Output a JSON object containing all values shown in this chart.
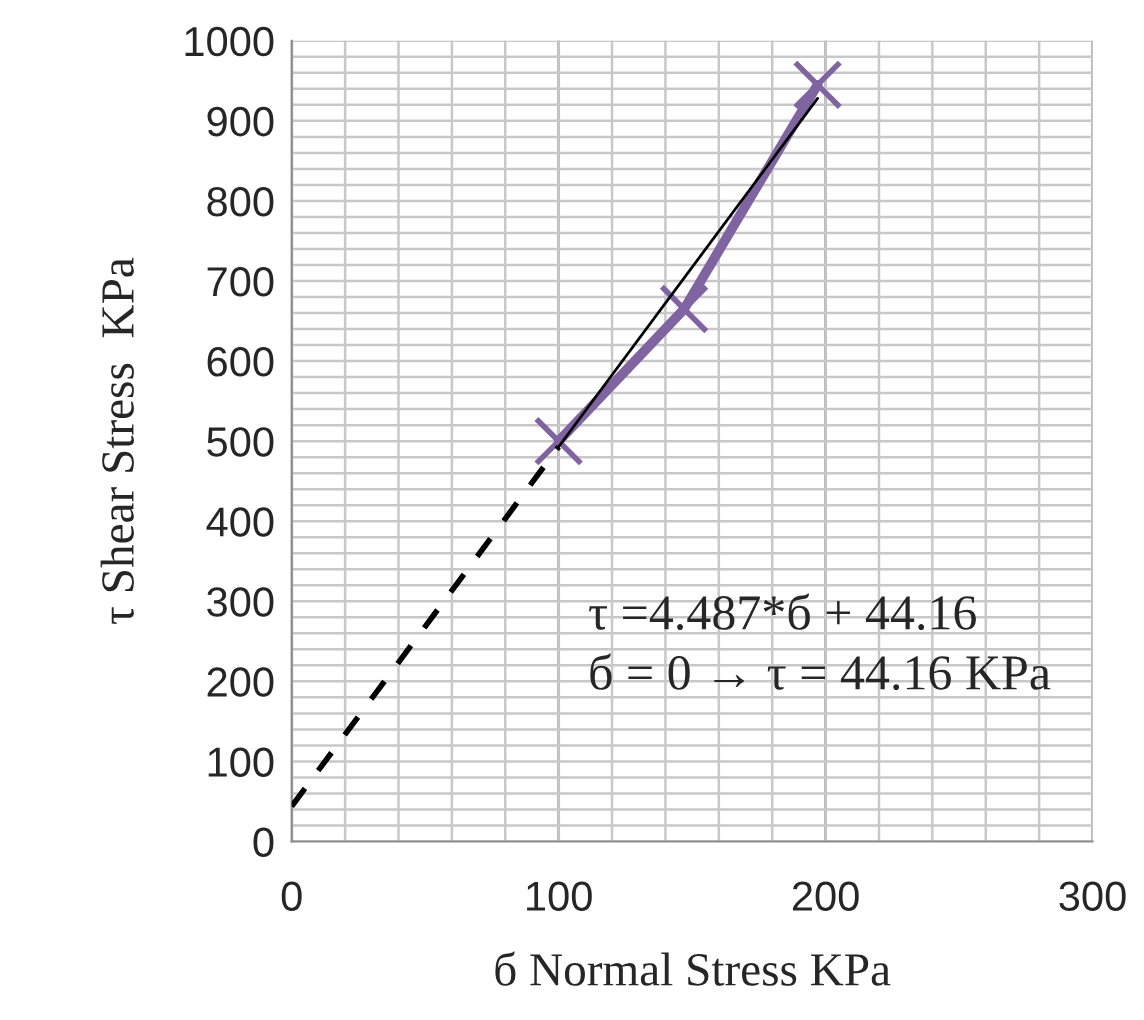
{
  "chart_data": {
    "type": "line",
    "xlabel": "б Normal Stress KPa",
    "ylabel": "τ Shear Stress  KPa",
    "annotations": [
      "τ =4.487*б + 44.16",
      "б = 0 → τ = 44.16 KPa"
    ],
    "series": [
      {
        "color": "#8064a2",
        "marker": "cross",
        "line_style": "solid",
        "x": [
          100,
          147,
          197
        ],
        "values": [
          500,
          665,
          945
        ]
      },
      {
        "color": "#000000",
        "marker": "none",
        "line_style": "solid",
        "x": [
          100,
          197
        ],
        "values": [
          493,
          928
        ]
      },
      {
        "color": "#000000",
        "marker": "none",
        "line_style": "dashed",
        "x": [
          0,
          100
        ],
        "values": [
          44,
          493
        ]
      }
    ],
    "xlim": [
      0,
      300
    ],
    "ylim": [
      0,
      1000
    ],
    "xticks": [
      0,
      {
        "value": 20,
        "label": null
      },
      {
        "value": 40,
        "label": null
      },
      {
        "value": 60,
        "label": null
      },
      {
        "value": 80,
        "label": null
      },
      100,
      {
        "value": 120,
        "label": null
      },
      {
        "value": 140,
        "label": null
      },
      {
        "value": 160,
        "label": null
      },
      {
        "value": 180,
        "label": null
      },
      200,
      {
        "value": 220,
        "label": null
      },
      {
        "value": 240,
        "label": null
      },
      {
        "value": 260,
        "label": null
      },
      {
        "value": 280,
        "label": null
      },
      300
    ],
    "yticks": [
      0,
      {
        "value": 20,
        "label": null
      },
      {
        "value": 40,
        "label": null
      },
      {
        "value": 60,
        "label": null
      },
      {
        "value": 80,
        "label": null
      },
      100,
      {
        "value": 120,
        "label": null
      },
      {
        "value": 140,
        "label": null
      },
      {
        "value": 160,
        "label": null
      },
      {
        "value": 180,
        "label": null
      },
      200,
      {
        "value": 220,
        "label": null
      },
      {
        "value": 240,
        "label": null
      },
      {
        "value": 260,
        "label": null
      },
      {
        "value": 280,
        "label": null
      },
      300,
      {
        "value": 320,
        "label": null
      },
      {
        "value": 340,
        "label": null
      },
      {
        "value": 360,
        "label": null
      },
      {
        "value": 380,
        "label": null
      },
      400,
      {
        "value": 420,
        "label": null
      },
      {
        "value": 440,
        "label": null
      },
      {
        "value": 460,
        "label": null
      },
      {
        "value": 480,
        "label": null
      },
      500,
      {
        "value": 520,
        "label": null
      },
      {
        "value": 540,
        "label": null
      },
      {
        "value": 560,
        "label": null
      },
      {
        "value": 580,
        "label": null
      },
      600,
      {
        "value": 620,
        "label": null
      },
      {
        "value": 640,
        "label": null
      },
      {
        "value": 660,
        "label": null
      },
      {
        "value": 680,
        "label": null
      },
      700,
      {
        "value": 720,
        "label": null
      },
      {
        "value": 740,
        "label": null
      },
      {
        "value": 760,
        "label": null
      },
      {
        "value": 780,
        "label": null
      },
      800,
      {
        "value": 820,
        "label": null
      },
      {
        "value": 840,
        "label": null
      },
      {
        "value": 860,
        "label": null
      },
      {
        "value": 880,
        "label": null
      },
      900,
      {
        "value": 920,
        "label": null
      },
      {
        "value": 940,
        "label": null
      },
      {
        "value": 960,
        "label": null
      },
      {
        "value": 980,
        "label": null
      },
      1000
    ],
    "grid": true,
    "legend": false
  }
}
